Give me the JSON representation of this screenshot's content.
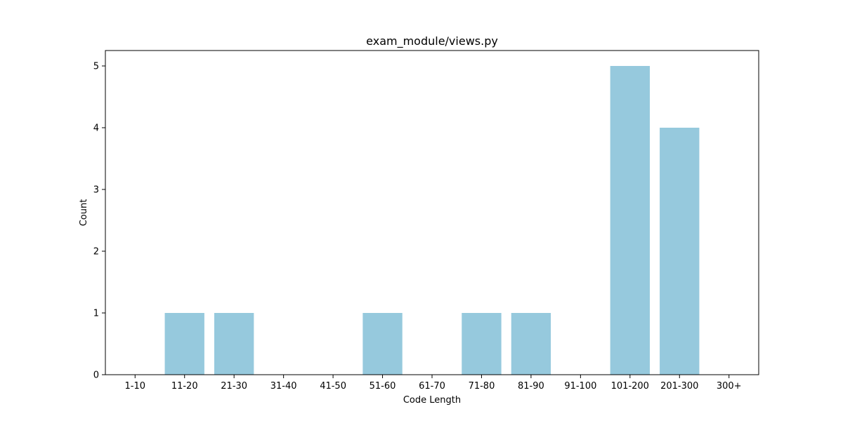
{
  "chart_data": {
    "type": "bar",
    "title": "exam_module/views.py",
    "xlabel": "Code Length",
    "ylabel": "Count",
    "categories": [
      "1-10",
      "11-20",
      "21-30",
      "31-40",
      "41-50",
      "51-60",
      "61-70",
      "71-80",
      "81-90",
      "91-100",
      "101-200",
      "201-300",
      "300+"
    ],
    "values": [
      0,
      1,
      1,
      0,
      0,
      1,
      0,
      1,
      1,
      0,
      5,
      4,
      0
    ],
    "ylim": [
      0,
      5.25
    ],
    "yticks": [
      "0",
      "1",
      "2",
      "3",
      "4",
      "5"
    ],
    "bar_color": "#96c9dd",
    "grid": false,
    "legend": "none"
  }
}
